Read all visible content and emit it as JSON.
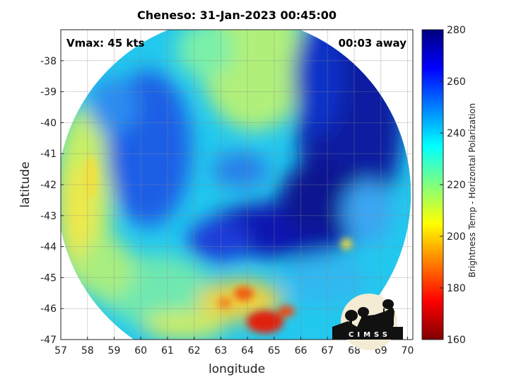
{
  "title": "Cheneso: 31-Jan-2023 00:45:00",
  "left_label": "Vmax: 45 kts",
  "right_label": "00:03 away",
  "logo_text": "CIMSS",
  "chart_data": {
    "type": "heatmap",
    "title": "Cheneso: 31-Jan-2023 00:45:00",
    "xlabel": "longitude",
    "ylabel": "latitude",
    "xlim": [
      57,
      70.2
    ],
    "ylim": [
      -47,
      -37.0
    ],
    "xticks": [
      57,
      58,
      59,
      60,
      61,
      62,
      63,
      64,
      65,
      66,
      67,
      68,
      69,
      70
    ],
    "yticks": [
      -38,
      -39,
      -40,
      -41,
      -42,
      -43,
      -44,
      -45,
      -46,
      -47
    ],
    "grid": true,
    "colorbar": {
      "label": "Brightness Temp - Horizontal Polarization",
      "range": [
        160,
        280
      ],
      "ticks": [
        280,
        260,
        240,
        220,
        200,
        180,
        160
      ],
      "colormap": "jet"
    },
    "swath": {
      "center_lon": 63.5,
      "center_lat": -42.3,
      "description": "circular microwave swath"
    },
    "features": [
      {
        "type": "cold_core",
        "lon": 66.0,
        "lat": -43.4,
        "value": 272
      },
      {
        "type": "band",
        "lon": 67.8,
        "lat": -40.5,
        "value": 270
      },
      {
        "type": "band",
        "lon": 60.0,
        "lat": -41.3,
        "value": 252
      },
      {
        "type": "warm_area",
        "lon": 64.5,
        "lat": -46.0,
        "value": 180
      },
      {
        "type": "warm_area",
        "lon": 58.5,
        "lat": -42.5,
        "value": 210
      }
    ]
  }
}
